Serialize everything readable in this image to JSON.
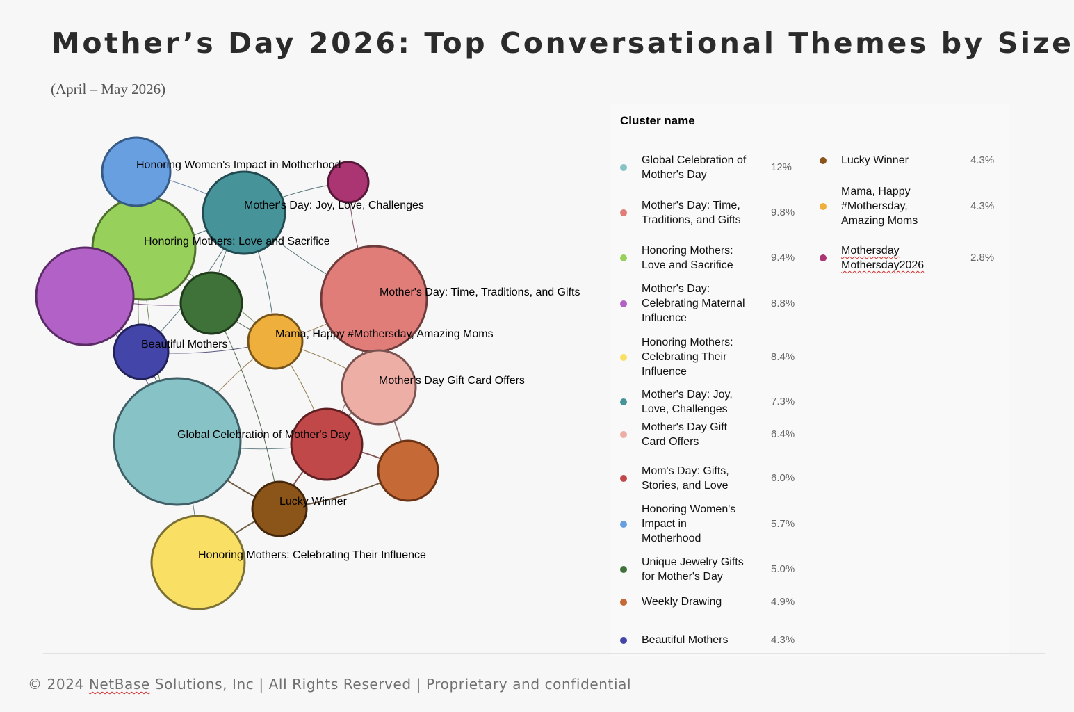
{
  "title": "Mother’s Day 2026: Top Conversational Themes by Size",
  "subtitle": "(April – May 2026)",
  "footer": {
    "prefix": "© 2024 ",
    "brand": "NetBase",
    "suffix": " Solutions, Inc | All Rights Reserved | Proprietary and confidential"
  },
  "legend_title": "Cluster name",
  "chart_data": {
    "type": "network",
    "clusters": [
      {
        "id": "global",
        "name": "Global Celebration of Mother's Day",
        "legend_lines": [
          "Global Celebration of",
          "Mother's Day"
        ],
        "share": "12%",
        "value": 12,
        "color": "#87c2c6",
        "stroke": "#3f5f66",
        "label": "Global Celebration of Mother's Day"
      },
      {
        "id": "time",
        "name": "Mother's Day: Time, Traditions, and Gifts",
        "legend_lines": [
          "Mother's Day: Time,",
          "Traditions, and Gifts"
        ],
        "share": "9.8%",
        "value": 9.8,
        "color": "#e07d78",
        "stroke": "#6e3a3a",
        "label": "Mother's Day: Time, Traditions, and Gifts"
      },
      {
        "id": "love",
        "name": "Honoring Mothers: Love and Sacrifice",
        "legend_lines": [
          "Honoring Mothers:",
          "Love and Sacrifice"
        ],
        "share": "9.4%",
        "value": 9.4,
        "color": "#97d05a",
        "stroke": "#4d6e2c",
        "label": "Honoring Mothers: Love and Sacrifice"
      },
      {
        "id": "maternal",
        "name": "Mother's Day: Celebrating Maternal Influence",
        "legend_lines": [
          "Mother's Day:",
          "Celebrating Maternal",
          "Influence"
        ],
        "share": "8.8%",
        "value": 8.8,
        "color": "#b261c6",
        "stroke": "#5a2b66",
        "label": ""
      },
      {
        "id": "influence",
        "name": "Honoring Mothers: Celebrating Their Influence",
        "legend_lines": [
          "Honoring Mothers:",
          "Celebrating Their",
          "Influence"
        ],
        "share": "8.4%",
        "value": 8.4,
        "color": "#f9e065",
        "stroke": "#7a6f34",
        "label": "Honoring Mothers: Celebrating Their Influence"
      },
      {
        "id": "joy",
        "name": "Mother's Day: Joy, Love, Challenges",
        "legend_lines": [
          "Mother's Day: Joy,",
          "Love, Challenges"
        ],
        "share": "7.3%",
        "value": 7.3,
        "color": "#46939a",
        "stroke": "#214b50",
        "label": "Mother's Day: Joy, Love, Challenges"
      },
      {
        "id": "giftcard",
        "name": "Mother's Day Gift Card Offers",
        "legend_lines": [
          "Mother's Day Gift",
          "Card Offers"
        ],
        "share": "6.4%",
        "value": 6.4,
        "color": "#ecaea5",
        "stroke": "#7a5350",
        "label": "Mother's Day Gift Card Offers"
      },
      {
        "id": "stories",
        "name": "Mom's Day: Gifts, Stories, and Love",
        "legend_lines": [
          "Mom's Day: Gifts,",
          "Stories, and Love"
        ],
        "share": "6.0%",
        "value": 6.0,
        "color": "#c04848",
        "stroke": "#5e1f22",
        "label": ""
      },
      {
        "id": "women",
        "name": "Honoring Women's Impact in Motherhood",
        "legend_lines": [
          "Honoring Women's",
          "Impact in",
          "Motherhood"
        ],
        "share": "5.7%",
        "value": 5.7,
        "color": "#689fe1",
        "stroke": "#355a86",
        "label": "Honoring Women's Impact in Motherhood"
      },
      {
        "id": "jewelry",
        "name": "Unique Jewelry Gifts for Mother's Day",
        "legend_lines": [
          "Unique Jewelry Gifts",
          "for Mother's Day"
        ],
        "share": "5.0%",
        "value": 5.0,
        "color": "#3e7238",
        "stroke": "#1e3a1b",
        "label": ""
      },
      {
        "id": "weekly",
        "name": "Weekly Drawing",
        "legend_lines": [
          "Weekly Drawing"
        ],
        "share": "4.9%",
        "value": 4.9,
        "color": "#c56a36",
        "stroke": "#6b3313",
        "label": ""
      },
      {
        "id": "beautiful",
        "name": "Beautiful Mothers",
        "legend_lines": [
          "Beautiful Mothers"
        ],
        "share": "4.3%",
        "value": 4.3,
        "color": "#4445a8",
        "stroke": "#202157",
        "label": "Beautiful Mothers"
      },
      {
        "id": "lucky",
        "name": "Lucky Winner",
        "legend_lines": [
          "Lucky Winner"
        ],
        "share": "4.3%",
        "value": 4.3,
        "color": "#8b5419",
        "stroke": "#43270a",
        "label": "Lucky Winner"
      },
      {
        "id": "mama",
        "name": "Mama, Happy #Mothersday, Amazing Moms",
        "legend_lines": [
          "Mama, Happy",
          "#Mothersday,",
          "Amazing Moms"
        ],
        "share": "4.3%",
        "value": 4.3,
        "color": "#eeaf3d",
        "stroke": "#77551a",
        "label": "Mama, Happy #Mothersday, Amazing Moms"
      },
      {
        "id": "hashtag",
        "name": "Mothersday Mothersday2026",
        "legend_lines": [
          "Mothersday",
          "Mothersday2026"
        ],
        "share": "2.8%",
        "value": 2.8,
        "color": "#ab3573",
        "stroke": "#551838",
        "label": ""
      }
    ],
    "links": [
      [
        "women",
        "joy"
      ],
      [
        "women",
        "love"
      ],
      [
        "joy",
        "hashtag"
      ],
      [
        "hashtag",
        "time"
      ],
      [
        "joy",
        "love"
      ],
      [
        "joy",
        "time"
      ],
      [
        "joy",
        "mama"
      ],
      [
        "joy",
        "jewelry"
      ],
      [
        "joy",
        "beautiful"
      ],
      [
        "love",
        "maternal"
      ],
      [
        "love",
        "jewelry"
      ],
      [
        "love",
        "beautiful"
      ],
      [
        "love",
        "mama"
      ],
      [
        "love",
        "global"
      ],
      [
        "maternal",
        "beautiful"
      ],
      [
        "maternal",
        "jewelry"
      ],
      [
        "maternal",
        "global"
      ],
      [
        "beautiful",
        "mama"
      ],
      [
        "beautiful",
        "global"
      ],
      [
        "jewelry",
        "mama"
      ],
      [
        "jewelry",
        "lucky"
      ],
      [
        "mama",
        "time"
      ],
      [
        "mama",
        "giftcard"
      ],
      [
        "mama",
        "global"
      ],
      [
        "mama",
        "stories"
      ],
      [
        "time",
        "giftcard"
      ],
      [
        "time",
        "stories"
      ],
      [
        "giftcard",
        "stories"
      ],
      [
        "giftcard",
        "weekly"
      ],
      [
        "stories",
        "lucky"
      ],
      [
        "stories",
        "weekly"
      ],
      [
        "lucky",
        "weekly"
      ],
      [
        "lucky",
        "global"
      ],
      [
        "lucky",
        "influence"
      ],
      [
        "global",
        "influence"
      ],
      [
        "global",
        "stories"
      ]
    ]
  }
}
